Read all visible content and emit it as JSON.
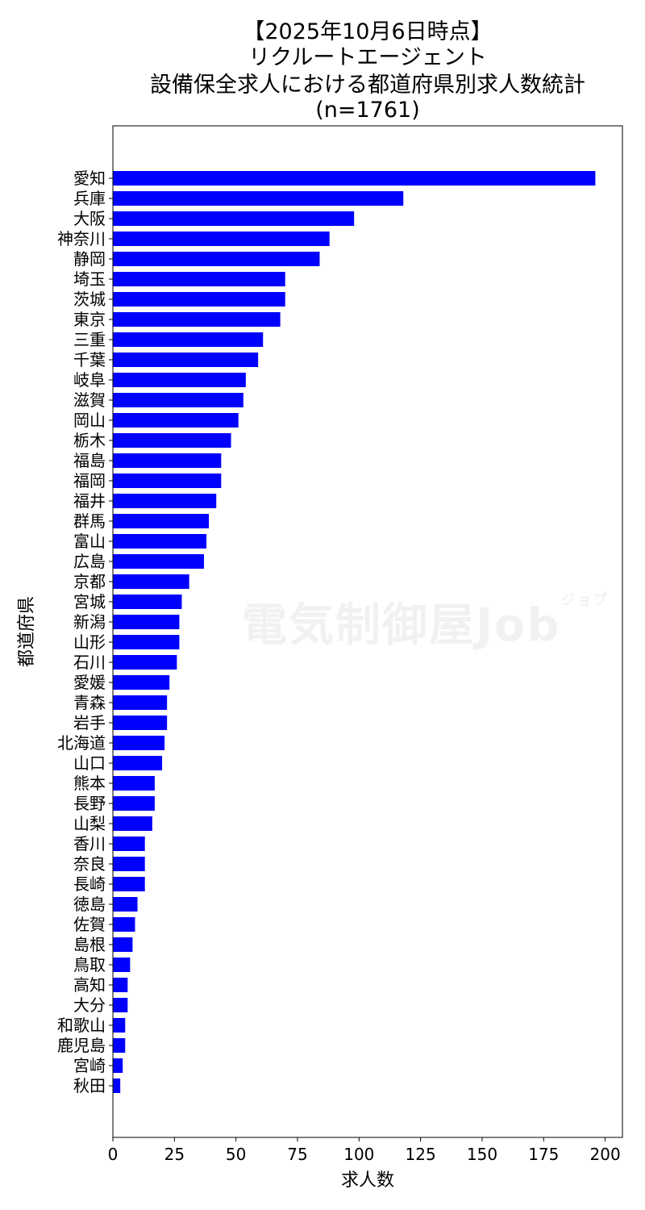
{
  "title_lines": [
    "【2025年10月6日時点】",
    "リクルートエージェント",
    "設備保全求人における都道府県別求人数統計",
    "(n=1761)"
  ],
  "watermark": {
    "main": "電気制御屋Job",
    "kana": "ジョブ"
  },
  "colors": {
    "bar": "#0000ff",
    "axis": "#000000",
    "background": "#ffffff"
  },
  "chart_data": {
    "type": "bar",
    "orientation": "horizontal",
    "title": "【2025年10月6日時点】 リクルートエージェント 設備保全求人における都道府県別求人数統計 (n=1761)",
    "xlabel": "求人数",
    "ylabel": "都道府県",
    "xlim": [
      0,
      207
    ],
    "xticks": [
      0,
      25,
      50,
      75,
      100,
      125,
      150,
      175,
      200
    ],
    "grid": false,
    "categories": [
      "愛知",
      "兵庫",
      "大阪",
      "神奈川",
      "静岡",
      "埼玉",
      "茨城",
      "東京",
      "三重",
      "千葉",
      "岐阜",
      "滋賀",
      "岡山",
      "栃木",
      "福島",
      "福岡",
      "福井",
      "群馬",
      "富山",
      "広島",
      "京都",
      "宮城",
      "新潟",
      "山形",
      "石川",
      "愛媛",
      "青森",
      "岩手",
      "北海道",
      "山口",
      "熊本",
      "長野",
      "山梨",
      "香川",
      "奈良",
      "長崎",
      "徳島",
      "佐賀",
      "島根",
      "鳥取",
      "高知",
      "大分",
      "和歌山",
      "鹿児島",
      "宮崎",
      "秋田"
    ],
    "values": [
      196,
      118,
      98,
      88,
      84,
      70,
      70,
      68,
      61,
      59,
      54,
      53,
      51,
      48,
      44,
      44,
      42,
      39,
      38,
      37,
      31,
      28,
      27,
      27,
      26,
      23,
      22,
      22,
      21,
      20,
      17,
      17,
      16,
      13,
      13,
      13,
      10,
      9,
      8,
      7,
      6,
      6,
      5,
      5,
      4,
      3
    ]
  }
}
